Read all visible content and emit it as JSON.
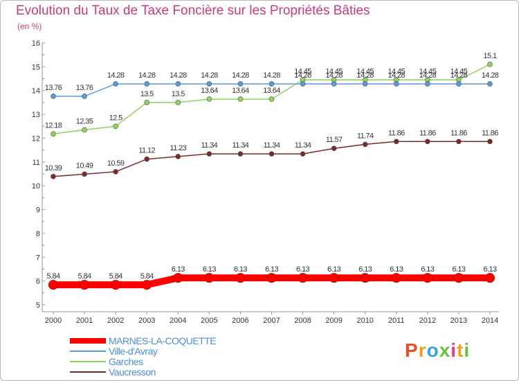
{
  "chart_data": {
    "type": "line",
    "title": "Evolution du Taux de Taxe Foncière sur les Propriétés Bâties",
    "subtitle": "(en %)",
    "xlabel": "",
    "ylabel": "",
    "x": [
      "2000",
      "2001",
      "2002",
      "2003",
      "2004",
      "2005",
      "2006",
      "2007",
      "2008",
      "2009",
      "2010",
      "2011",
      "2012",
      "2013",
      "2014"
    ],
    "yticks": [
      5,
      6,
      7,
      8,
      9,
      10,
      11,
      12,
      13,
      14,
      15,
      16
    ],
    "ylim": [
      5,
      16
    ],
    "grid": false,
    "legend_position": "bottom-left",
    "series": [
      {
        "name": "MARNES-LA-COQUETTE",
        "color": "#ff0000",
        "values": [
          5.84,
          5.84,
          5.84,
          5.84,
          6.13,
          6.13,
          6.13,
          6.13,
          6.13,
          6.13,
          6.13,
          6.13,
          6.13,
          6.13,
          6.13
        ],
        "labels": [
          "5.84",
          "5.84",
          "5.84",
          "5.84",
          "6.13",
          "6.13",
          "6.13",
          "6.13",
          "6.13",
          "6.13",
          "6.13",
          "6.13",
          "6.13",
          "6.13",
          "6.13"
        ]
      },
      {
        "name": "Ville-d'Avray",
        "color": "#5b9bd5",
        "values": [
          13.76,
          13.76,
          14.28,
          14.28,
          14.28,
          14.28,
          14.28,
          14.28,
          14.28,
          14.28,
          14.28,
          14.28,
          14.28,
          14.28,
          14.28
        ],
        "labels": [
          "13.76",
          "13.76",
          "14.28",
          "14.28",
          "14.28",
          "14.28",
          "14.28",
          "14.28",
          "14.28",
          "14.28",
          "14.28",
          "14.28",
          "14.28",
          "14.28",
          "14.28"
        ]
      },
      {
        "name": "Garches",
        "color": "#8cd45a",
        "values": [
          12.18,
          12.35,
          12.5,
          13.5,
          13.5,
          13.64,
          13.64,
          13.64,
          14.45,
          14.45,
          14.45,
          14.45,
          14.45,
          14.45,
          15.1
        ],
        "labels": [
          "12.18",
          "12.35",
          "12.5",
          "13.5",
          "13.5",
          "13.64",
          "13.64",
          "13.64",
          "14.45",
          "14.45",
          "14.45",
          "14.45",
          "14.45",
          "14.45",
          "15.1"
        ]
      },
      {
        "name": "Vaucresson",
        "color": "#7a2a2a",
        "values": [
          10.39,
          10.49,
          10.59,
          11.12,
          11.23,
          11.34,
          11.34,
          11.34,
          11.34,
          11.57,
          11.74,
          11.86,
          11.86,
          11.86,
          11.86
        ],
        "labels": [
          "10.39",
          "10.49",
          "10.59",
          "11.12",
          "11.23",
          "11.34",
          "11.34",
          "11.34",
          "11.34",
          "11.57",
          "11.74",
          "11.86",
          "11.86",
          "11.86",
          "11.86"
        ]
      }
    ]
  },
  "logo_text": "Proxiti"
}
